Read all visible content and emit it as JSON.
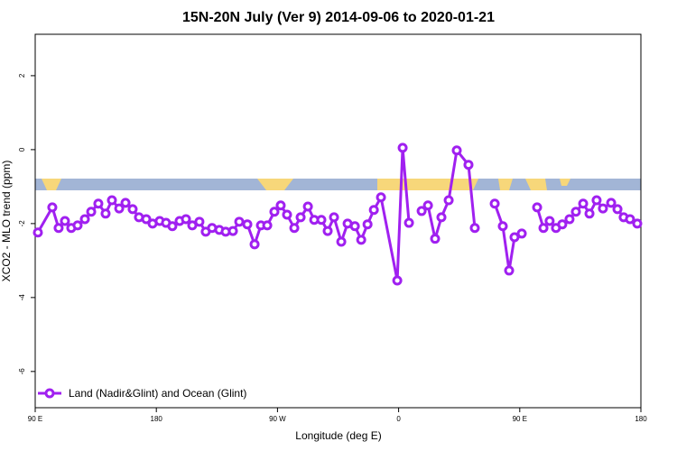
{
  "chart_data": {
    "type": "line",
    "title": "15N-20N July (Ver 9)   2014-09-06 to 2020-01-21",
    "x_label": "Longitude (deg E)",
    "y_label": "XCO2 - MLO trend (ppm)",
    "xlim": [
      90,
      540
    ],
    "xticks": [
      {
        "value": 90,
        "label": "90 E"
      },
      {
        "value": 180,
        "label": "180"
      },
      {
        "value": 270,
        "label": "90 W"
      },
      {
        "value": 360,
        "label": "0"
      },
      {
        "value": 450,
        "label": "90 E"
      },
      {
        "value": 540,
        "label": "180"
      }
    ],
    "ylim": [
      -6.98,
      3.12
    ],
    "yticks": [
      -6,
      -4,
      -2,
      0,
      2
    ],
    "legend": "bottom-left",
    "x": [
      92,
      102.7,
      107.4,
      112.1,
      116.8,
      121.5,
      126.9,
      131.6,
      136.9,
      142.3,
      147,
      152.4,
      157.1,
      162.4,
      167.1,
      172.5,
      177.2,
      182.5,
      187.2,
      191.9,
      197.3,
      202,
      206.7,
      212,
      216.7,
      221.4,
      226.8,
      231.5,
      236.9,
      241.6,
      247.6,
      253,
      257.7,
      262.4,
      267.7,
      272.4,
      277.1,
      282.5,
      287.2,
      292.6,
      297.3,
      302.6,
      307.3,
      312,
      317.4,
      322.1,
      327.5,
      332.2,
      336.9,
      341.6,
      346.9,
      359,
      363,
      367.7,
      372.4,
      377.1,
      381.8,
      387.1,
      391.8,
      397.2,
      403.2,
      411.9,
      416.6,
      421.3,
      426,
      431.4,
      437.4,
      442.1,
      446.1,
      451.5,
      457.2,
      462.9,
      467.6,
      472.2,
      476.9,
      481.6,
      487,
      491.7,
      497.1,
      501.8,
      507.1,
      511.8,
      517.9,
      522.6,
      527.2,
      531.9,
      537.3
    ],
    "series": [
      {
        "name": "Land (Nadir&Glint) and Ocean (Glint)",
        "color": "#a020f0",
        "values": [
          -2.24,
          -1.56,
          -2.12,
          -1.93,
          -2.12,
          -2.05,
          -1.88,
          -1.68,
          -1.46,
          -1.73,
          -1.37,
          -1.59,
          -1.44,
          -1.61,
          -1.83,
          -1.88,
          -2.0,
          -1.93,
          -1.98,
          -2.07,
          -1.93,
          -1.88,
          -2.05,
          -1.95,
          -2.22,
          -2.12,
          -2.17,
          -2.22,
          -2.2,
          -1.95,
          -2.02,
          -2.56,
          -2.05,
          -2.05,
          -1.68,
          -1.51,
          -1.76,
          -2.12,
          -1.83,
          -1.54,
          -1.9,
          -1.9,
          -2.2,
          -1.83,
          -2.49,
          -2.0,
          -2.07,
          -2.44,
          -2.02,
          -1.63,
          -1.29,
          -3.54,
          0.05,
          -1.98,
          null,
          -1.66,
          -1.51,
          -2.41,
          -1.83,
          -1.37,
          -0.02,
          -0.41,
          -2.12,
          null,
          null,
          -1.46,
          -2.07,
          -3.27,
          -2.37,
          -2.27,
          null,
          -1.56,
          -2.12,
          -1.93,
          -2.12,
          -2.02,
          -1.88,
          -1.68,
          -1.46,
          -1.73,
          -1.37,
          -1.59,
          -1.44,
          -1.61,
          -1.83,
          -1.88,
          -2.0
        ]
      }
    ]
  }
}
